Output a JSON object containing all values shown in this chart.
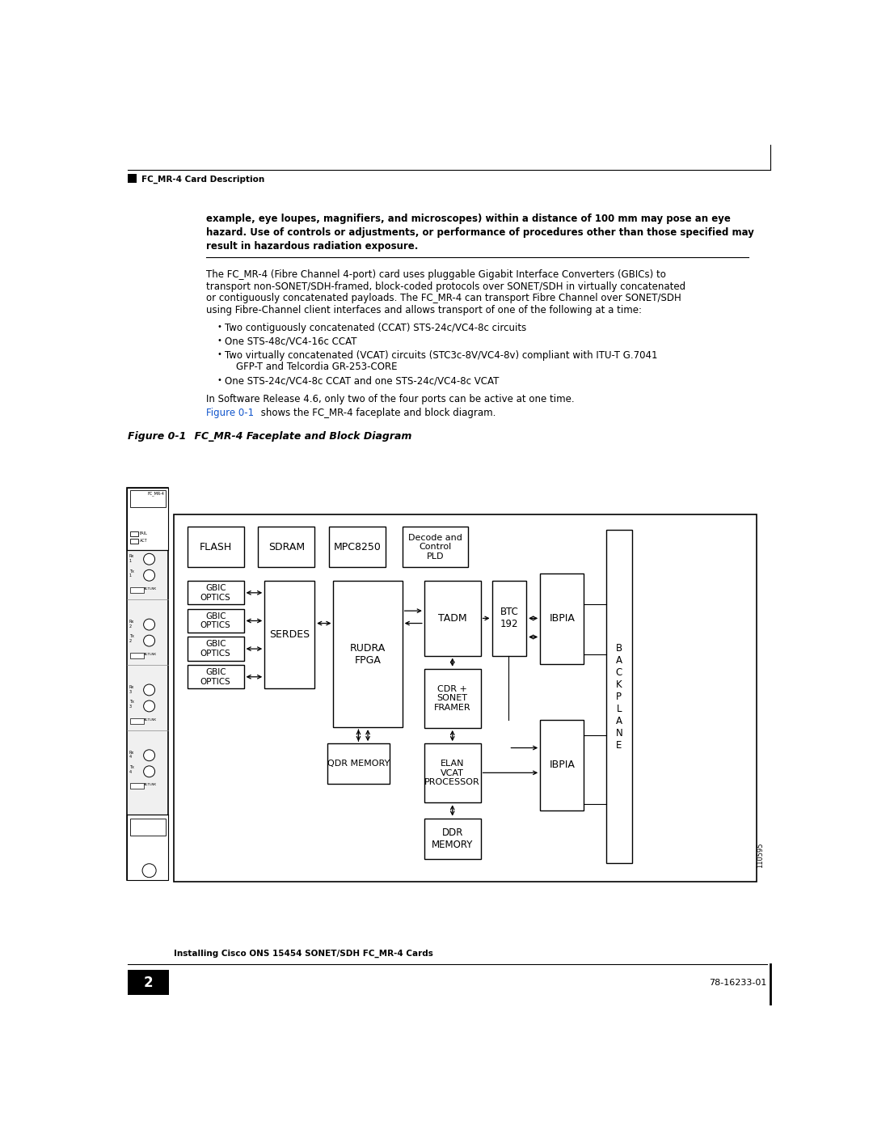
{
  "page_width": 10.8,
  "page_height": 13.97,
  "bg_color": "#ffffff",
  "header_text": "FC_MR-4 Card Description",
  "footer_left": "Installing Cisco ONS 15454 SONET/SDH FC_MR-4 Cards",
  "footer_right": "78-16233-01",
  "footer_page": "2",
  "warning_line1": "example, eye loupes, magnifiers, and microscopes) within a distance of 100 mm may pose an eye",
  "warning_line2": "hazard. Use of controls or adjustments, or performance of procedures other than those specified may",
  "warning_line3": "result in hazardous radiation exposure.",
  "body_line1": "The FC_MR-4 (Fibre Channel 4-port) card uses pluggable Gigabit Interface Converters (GBICs) to",
  "body_line2": "transport non-SONET/SDH-framed, block-coded protocols over SONET/SDH in virtually concatenated",
  "body_line3": "or contiguously concatenated payloads. The FC_MR-4 can transport Fibre Channel over SONET/SDH",
  "body_line4": "using Fibre-Channel client interfaces and allows transport of one of the following at a time:",
  "bullet1": "Two contiguously concatenated (CCAT) STS-24c/VC4-8c circuits",
  "bullet2": "One STS-48c/VC4-16c CCAT",
  "bullet3a": "Two virtually concatenated (VCAT) circuits (STC3c-8V/VC4-8v) compliant with ITU-T G.7041",
  "bullet3b": "GFP-T and Telcordia GR-253-CORE",
  "bullet4": "One STS-24c/VC4-8c CCAT and one STS-24c/VC4-8c VCAT",
  "release_text": "In Software Release 4.6, only two of the four ports can be active at one time.",
  "figure_ref_blue": "Figure 0-1",
  "figure_ref_rest": " shows the FC_MR-4 faceplate and block diagram.",
  "figure_caption_num": "Figure 0-1",
  "figure_caption_title": "    FC_MR-4 Faceplate and Block Diagram",
  "figure_ref_color": "#1155CC",
  "watermark": "110595"
}
